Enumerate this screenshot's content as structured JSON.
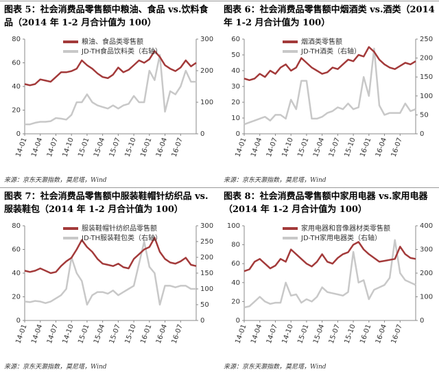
{
  "chart_data": [
    {
      "type": "line",
      "title": "图表 5：社会消费品零售额中粮油、食品 vs.饮料食品（2014 年 1-2 月合计值为 100）",
      "source": "来源：京东天灏指数，莫尼塔，Wind",
      "categories": [
        "14-01",
        null,
        null,
        "14-04",
        null,
        null,
        "14-07",
        null,
        null,
        "14-10",
        null,
        null,
        "15-01",
        null,
        null,
        "15-04",
        null,
        null,
        "15-07",
        null,
        null,
        "15-10",
        null,
        null,
        "16-01",
        null,
        null,
        "16-04",
        null,
        null,
        "16-07",
        null,
        null,
        null
      ],
      "ylim": [
        0,
        80
      ],
      "yticks": [
        0,
        20,
        40,
        60,
        80
      ],
      "y2lim": [
        0,
        300
      ],
      "y2ticks": [
        0,
        100,
        200,
        300
      ],
      "legend": "top",
      "series": [
        {
          "name": "粮油、食品类零售额",
          "color": "#a33a3a",
          "values": [
            42,
            41,
            42,
            46,
            45,
            44,
            48,
            52,
            52,
            53,
            55,
            62,
            58,
            55,
            51,
            48,
            47,
            50,
            56,
            52,
            54,
            58,
            62,
            60,
            63,
            70,
            65,
            58,
            55,
            53,
            56,
            62,
            57,
            60
          ]
        },
        {
          "name": "JD-TH食品饮料类（右轴）",
          "color": "#c8c8c8",
          "axis": "y2",
          "values": [
            30,
            30,
            35,
            38,
            38,
            40,
            50,
            48,
            45,
            60,
            100,
            100,
            125,
            100,
            90,
            85,
            80,
            90,
            80,
            90,
            95,
            120,
            100,
            100,
            200,
            170,
            250,
            70,
            135,
            125,
            150,
            200,
            165,
            165
          ]
        }
      ]
    },
    {
      "type": "line",
      "title": "图表 6：社会消费品零售额中烟酒类 vs.酒类（2014 年 1-2 月合计值为 100）",
      "source": "来源：京东天灏指数，莫尼塔，Wind",
      "categories": [
        "14-01",
        null,
        null,
        "14-04",
        null,
        null,
        "14-07",
        null,
        null,
        "14-10",
        null,
        null,
        "15-01",
        null,
        null,
        "15-04",
        null,
        null,
        "15-07",
        null,
        null,
        "15-10",
        null,
        null,
        "16-01",
        null,
        null,
        "16-04",
        null,
        null,
        "16-07",
        null,
        null,
        null
      ],
      "ylim": [
        0,
        60
      ],
      "yticks": [
        0,
        10,
        20,
        30,
        40,
        50,
        60
      ],
      "y2lim": [
        0,
        250
      ],
      "y2ticks": [
        0,
        50,
        100,
        150,
        200,
        250
      ],
      "legend": "top",
      "series": [
        {
          "name": "烟酒类零售额",
          "color": "#a33a3a",
          "values": [
            35,
            34,
            35,
            38,
            36,
            40,
            38,
            42,
            44,
            40,
            42,
            48,
            45,
            42,
            40,
            38,
            39,
            42,
            41,
            44,
            47,
            46,
            50,
            49,
            55,
            52,
            47,
            44,
            42,
            41,
            43,
            45,
            44,
            46
          ]
        },
        {
          "name": "JD-TH酒类（右轴）",
          "color": "#c8c8c8",
          "axis": "y2",
          "values": [
            25,
            30,
            35,
            40,
            45,
            35,
            50,
            50,
            40,
            90,
            65,
            140,
            140,
            40,
            40,
            45,
            55,
            60,
            70,
            65,
            80,
            65,
            70,
            150,
            100,
            225,
            75,
            50,
            55,
            55,
            55,
            80,
            60,
            65
          ]
        }
      ]
    },
    {
      "type": "line",
      "title": "图表 7：社会消费品零售额中服装鞋帽针纺织品 vs.服装鞋包（2014 年 1-2 月合计值为 100）",
      "source": "来源：京东天灏指数，莫尼塔，Wind",
      "categories": [
        "14-01",
        null,
        null,
        "14-04",
        null,
        null,
        "14-07",
        null,
        null,
        "14-10",
        null,
        null,
        "15-01",
        null,
        null,
        "15-04",
        null,
        null,
        "15-07",
        null,
        null,
        "15-10",
        null,
        null,
        "16-01",
        null,
        null,
        "16-04",
        null,
        null,
        "16-07",
        null,
        null,
        null
      ],
      "ylim": [
        0,
        80
      ],
      "yticks": [
        0,
        20,
        40,
        60,
        80
      ],
      "y2lim": [
        0,
        300
      ],
      "y2ticks": [
        0,
        50,
        100,
        150,
        200,
        250,
        300
      ],
      "legend": "top",
      "series": [
        {
          "name": "服装鞋帽针纺织品零售额",
          "color": "#a33a3a",
          "values": [
            42,
            41,
            42,
            44,
            42,
            40,
            41,
            46,
            50,
            53,
            60,
            68,
            62,
            58,
            52,
            48,
            47,
            46,
            48,
            45,
            44,
            52,
            56,
            60,
            62,
            70,
            58,
            52,
            49,
            48,
            50,
            53,
            47,
            46
          ]
        },
        {
          "name": "JD-TH服装鞋包类（右轴）",
          "color": "#c8c8c8",
          "axis": "y2",
          "values": [
            60,
            58,
            62,
            60,
            55,
            60,
            70,
            80,
            100,
            200,
            150,
            125,
            50,
            80,
            90,
            90,
            85,
            95,
            80,
            90,
            100,
            110,
            180,
            250,
            170,
            150,
            50,
            110,
            110,
            105,
            110,
            110,
            100,
            100
          ]
        }
      ]
    },
    {
      "type": "line",
      "title": "图表 8：社会消费品零售额中家用电器 vs.家用电器（2014 年 1-2 月合计值为 100）",
      "source": "来源：京东天灏指数，莫尼塔，Wind",
      "categories": [
        "14-01",
        null,
        null,
        "14-04",
        null,
        null,
        "14-07",
        null,
        null,
        "14-10",
        null,
        null,
        "15-01",
        null,
        null,
        "15-04",
        null,
        null,
        "15-07",
        null,
        null,
        "15-10",
        null,
        null,
        "16-01",
        null,
        null,
        "16-04",
        null,
        null,
        "16-07",
        null,
        null,
        null
      ],
      "ylim": [
        0,
        100
      ],
      "yticks": [
        0,
        20,
        40,
        60,
        80,
        100
      ],
      "y2lim": [
        0,
        400
      ],
      "y2ticks": [
        0,
        100,
        200,
        300,
        400
      ],
      "legend": "top",
      "series": [
        {
          "name": "家用电器和音像器材类零售额",
          "color": "#a33a3a",
          "values": [
            52,
            54,
            62,
            65,
            60,
            55,
            58,
            65,
            62,
            75,
            70,
            65,
            60,
            57,
            62,
            70,
            62,
            60,
            66,
            70,
            72,
            80,
            83,
            75,
            70,
            66,
            62,
            63,
            64,
            65,
            78,
            70,
            66,
            65
          ]
        },
        {
          "name": "JD-TH家用电器类（右轴）",
          "color": "#c8c8c8",
          "axis": "y2",
          "values": [
            55,
            60,
            80,
            100,
            80,
            70,
            75,
            75,
            160,
            105,
            110,
            75,
            90,
            80,
            100,
            140,
            120,
            115,
            110,
            105,
            120,
            290,
            160,
            170,
            90,
            130,
            140,
            150,
            180,
            340,
            200,
            170,
            160,
            150
          ]
        }
      ]
    }
  ]
}
